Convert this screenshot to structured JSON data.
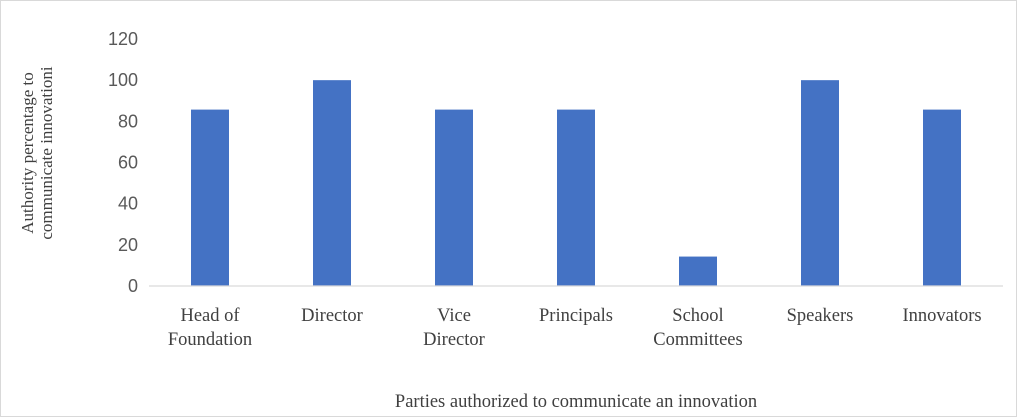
{
  "chart_data": {
    "type": "bar",
    "categories": [
      [
        "Head of",
        "Foundation"
      ],
      [
        "Director"
      ],
      [
        "Vice",
        "Director"
      ],
      [
        "Principals"
      ],
      [
        "School",
        "Committees"
      ],
      [
        "Speakers"
      ],
      [
        "Innovators"
      ]
    ],
    "values": [
      85.7,
      100,
      85.7,
      85.7,
      14.3,
      100,
      85.7
    ],
    "xlabel": "Parties authorized to communicate an innovation",
    "ylabel": [
      "Authority percentage to",
      "communicate innovationi"
    ],
    "ylim": [
      0,
      120
    ],
    "yticks": [
      0,
      20,
      40,
      60,
      80,
      100,
      120
    ],
    "grid": false,
    "legend": "none",
    "colors": {
      "bar": "#4472c4",
      "axis": "#d9d9d9",
      "text": "#404040",
      "tick_text": "#595959"
    }
  }
}
